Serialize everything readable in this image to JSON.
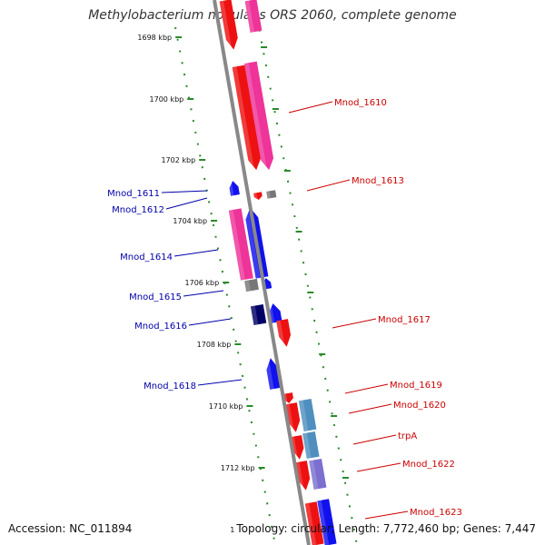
{
  "title": "Methylobacterium nodulans ORS 2060, complete genome",
  "accession": "Accession: NC_011894",
  "topology": "Topology: circular; Length: 7,772,460 bp; Genes: 7,447",
  "topology_marker": "1",
  "colors": {
    "backbone": "#888888",
    "ruler": "#2a8a2a",
    "label_red": "#cc0000",
    "label_blue": "#0000aa",
    "red": "#ee1111",
    "magenta": "#ee3399",
    "blue": "#1111ee",
    "navy": "#000066",
    "grey": "#777777",
    "steel": "#4f8fbf",
    "lilac": "#7b6fcf"
  },
  "ruler_ticks": [
    "1698 kbp",
    "1700 kbp",
    "1702 kbp",
    "1704 kbp",
    "1706 kbp",
    "1708 kbp",
    "1710 kbp",
    "1712 kbp"
  ],
  "gene_labels_right": [
    "Mnod_1610",
    "Mnod_1613",
    "Mnod_1617",
    "Mnod_1619",
    "Mnod_1620",
    "trpA",
    "Mnod_1622",
    "Mnod_1623"
  ],
  "gene_labels_left": [
    "Mnod_1611",
    "Mnod_1612",
    "Mnod_1614",
    "Mnod_1615",
    "Mnod_1616",
    "Mnod_1618"
  ]
}
